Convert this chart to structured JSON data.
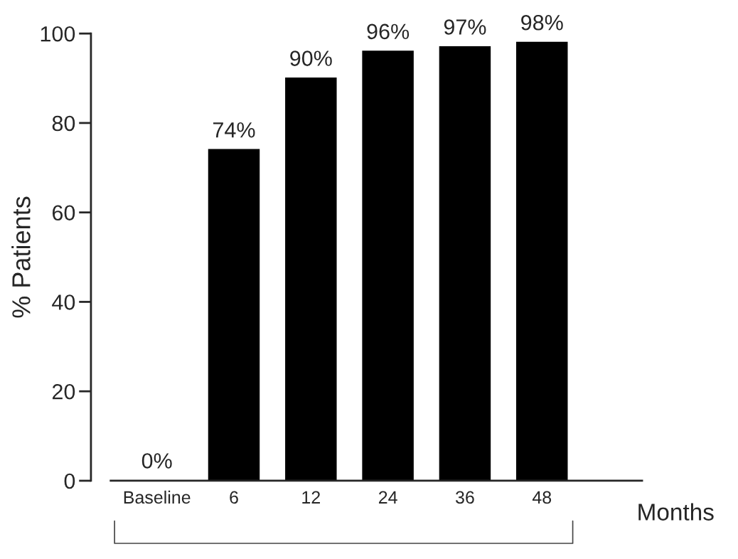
{
  "chart_data": {
    "type": "bar",
    "xlabel": "Months",
    "ylabel": "% Patients",
    "categories": [
      "Baseline",
      "6",
      "12",
      "24",
      "36",
      "48"
    ],
    "values": [
      0,
      74,
      90,
      96,
      97,
      98
    ],
    "value_labels": [
      "0%",
      "74%",
      "90%",
      "96%",
      "97%",
      "98%"
    ],
    "color": "#000000",
    "ylim": [
      0,
      100
    ],
    "yticks": [
      0,
      20,
      40,
      60,
      80,
      100
    ],
    "grid": false,
    "legend": false
  }
}
